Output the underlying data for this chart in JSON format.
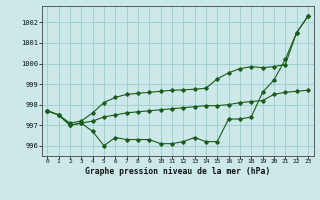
{
  "title": "Graphe pression niveau de la mer (hPa)",
  "bg_color": "#cce8e8",
  "grid_color": "#99cccc",
  "line_color": "#1a5c1a",
  "xlim": [
    -0.5,
    23.5
  ],
  "ylim": [
    995.5,
    1002.8
  ],
  "yticks": [
    996,
    997,
    998,
    999,
    1000,
    1001,
    1002
  ],
  "xticks": [
    0,
    1,
    2,
    3,
    4,
    5,
    6,
    7,
    8,
    9,
    10,
    11,
    12,
    13,
    14,
    15,
    16,
    17,
    18,
    19,
    20,
    21,
    22,
    23
  ],
  "series": [
    [
      997.7,
      997.5,
      997.0,
      997.1,
      996.7,
      996.0,
      996.4,
      996.3,
      996.3,
      996.3,
      996.1,
      996.1,
      996.2,
      996.4,
      996.2,
      996.2,
      997.3,
      997.3,
      997.4,
      998.6,
      999.2,
      1000.2,
      1001.5,
      1002.3
    ],
    [
      997.7,
      997.5,
      997.0,
      997.1,
      997.2,
      997.4,
      997.5,
      997.6,
      997.65,
      997.7,
      997.75,
      997.8,
      997.85,
      997.9,
      997.95,
      997.95,
      998.0,
      998.1,
      998.15,
      998.2,
      998.5,
      998.6,
      998.65,
      998.7
    ],
    [
      997.7,
      997.5,
      997.1,
      997.2,
      997.6,
      998.1,
      998.35,
      998.5,
      998.55,
      998.6,
      998.65,
      998.7,
      998.72,
      998.75,
      998.8,
      999.25,
      999.55,
      999.75,
      999.85,
      999.8,
      999.85,
      999.95,
      1001.5,
      1002.3
    ]
  ]
}
